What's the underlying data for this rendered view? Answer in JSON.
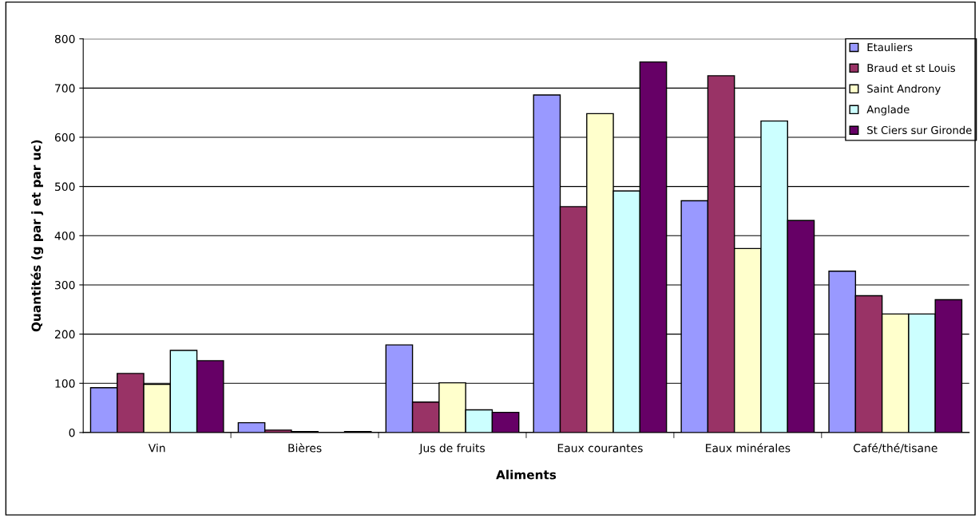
{
  "chart_data": {
    "type": "bar",
    "xlabel": "Aliments",
    "ylabel": "Quantités (g par j et par uc)",
    "categories": [
      "Vin",
      "Bières",
      "Jus de fruits",
      "Eaux courantes",
      "Eaux minérales",
      "Café/thé/tisane"
    ],
    "series": [
      {
        "name": "Etauliers",
        "color": "#9999ff",
        "values": [
          91,
          20,
          178,
          686,
          471,
          328
        ]
      },
      {
        "name": "Braud et st Louis",
        "color": "#993366",
        "values": [
          120,
          5,
          62,
          459,
          725,
          278
        ]
      },
      {
        "name": "Saint Androny",
        "color": "#ffffcc",
        "values": [
          98,
          2,
          101,
          648,
          374,
          241
        ]
      },
      {
        "name": "Anglade",
        "color": "#ccffff",
        "values": [
          167,
          null,
          46,
          491,
          633,
          241
        ]
      },
      {
        "name": "St Ciers sur Gironde",
        "color": "#660066",
        "values": [
          146,
          2,
          41,
          753,
          431,
          270
        ]
      }
    ],
    "ylim": [
      0,
      800
    ],
    "yticks": [
      0,
      100,
      200,
      300,
      400,
      500,
      600,
      700,
      800
    ],
    "grid": "y",
    "legend": "top right"
  }
}
